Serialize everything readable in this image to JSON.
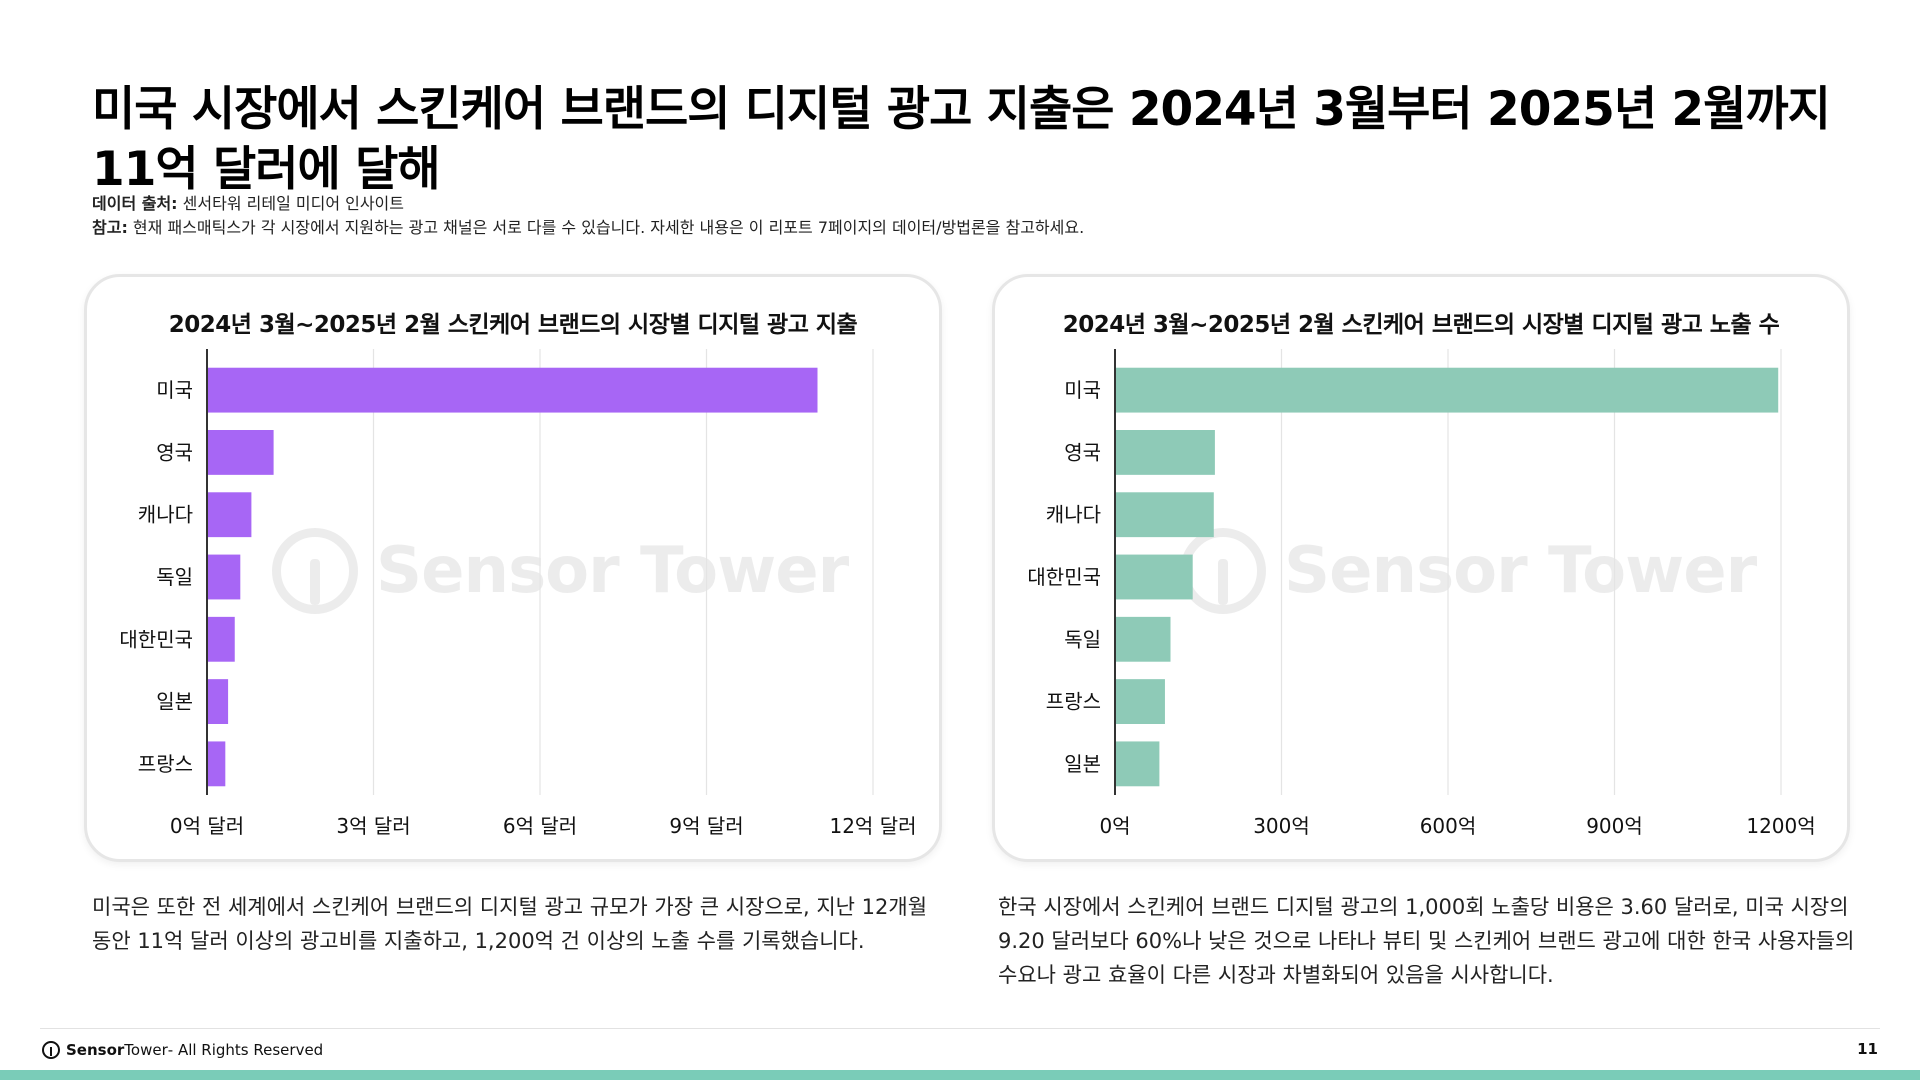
{
  "title": "미국 시장에서 스킨케어 브랜드의 디지털 광고 지출은 2024년 3월부터 2025년 2월까지 11억 달러에 달해",
  "source": {
    "label": "데이터 출처:",
    "text": " 센서타워 리테일 미디어 인사이트"
  },
  "note": {
    "label": "참고:",
    "text": " 현재 패스매틱스가 각 시장에서 지원하는 광고 채널은 서로 다를 수 있습니다. 자세한 내용은 이 리포트 7페이지의 데이터/방법론을 참고하세요."
  },
  "watermark": "Sensor Tower",
  "chart_data": [
    {
      "type": "bar",
      "orientation": "horizontal",
      "title": "2024년 3월~2025년 2월 스킨케어 브랜드의 시장별 디지털 광고 지출",
      "categories": [
        "미국",
        "영국",
        "캐나다",
        "독일",
        "대한민국",
        "일본",
        "프랑스"
      ],
      "values": [
        11.0,
        1.2,
        0.8,
        0.6,
        0.5,
        0.38,
        0.33
      ],
      "unit": "억 달러",
      "xlim": [
        0,
        12
      ],
      "ticks": [
        0,
        3,
        6,
        9,
        12
      ],
      "tick_labels": [
        "0억 달러",
        "3억 달러",
        "6억 달러",
        "9억 달러",
        "12억 달러"
      ],
      "color": "#A766F5",
      "grid": true
    },
    {
      "type": "bar",
      "orientation": "horizontal",
      "title": "2024년 3월~2025년 2월 스킨케어 브랜드의 시장별 디지털 광고 노출 수",
      "categories": [
        "미국",
        "영국",
        "캐나다",
        "대한민국",
        "독일",
        "프랑스",
        "일본"
      ],
      "values": [
        1195,
        180,
        178,
        140,
        100,
        90,
        80
      ],
      "unit": "억",
      "xlim": [
        0,
        1200
      ],
      "ticks": [
        0,
        300,
        600,
        900,
        1200
      ],
      "tick_labels": [
        "0억",
        "300억",
        "600억",
        "900억",
        "1200억"
      ],
      "color": "#8ECAB7",
      "grid": true
    }
  ],
  "descriptions": [
    "미국은 또한 전 세계에서 스킨케어 브랜드의 디지털 광고 규모가 가장 큰 시장으로, 지난 12개월 동안 11억 달러 이상의 광고비를 지출하고, 1,200억 건 이상의 노출 수를 기록했습니다.",
    "한국 시장에서 스킨케어 브랜드 디지털 광고의 1,000회 노출당 비용은 3.60 달러로, 미국 시장의 9.20 달러보다 60%나 낮은 것으로 나타나 뷰티 및 스킨케어 브랜드 광고에 대한 한국 사용자들의 수요나 광고 효율이 다른 시장과 차별화되어 있음을 시사합니다."
  ],
  "footer": {
    "brand_bold": "Sensor",
    "brand_light": "Tower",
    "rights": " - All Rights Reserved",
    "page": "11"
  },
  "colors": {
    "bottom_bar": "#7ACCB8",
    "axis": "#333333",
    "grid": "#e4e4e4"
  }
}
